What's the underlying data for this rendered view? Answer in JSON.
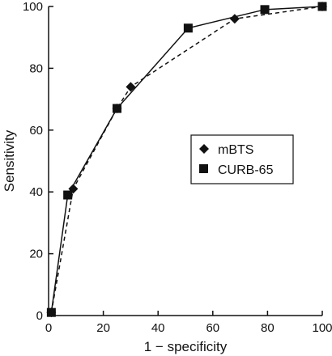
{
  "chart_data": {
    "type": "line",
    "xlabel": "1 − specificity",
    "ylabel": "Sensitivity",
    "xlim": [
      0,
      100
    ],
    "ylim": [
      0,
      100
    ],
    "x_ticks": [
      0,
      20,
      40,
      60,
      80,
      100
    ],
    "y_ticks": [
      0,
      20,
      40,
      60,
      80,
      100
    ],
    "grid": false,
    "legend_position": "center-right",
    "series": [
      {
        "name": "mBTS",
        "marker": "diamond",
        "line_style": "dashed",
        "color": "#111111",
        "x": [
          1,
          9,
          25,
          30,
          68,
          100
        ],
        "y": [
          1,
          41,
          67,
          74,
          96,
          100
        ]
      },
      {
        "name": "CURB-65",
        "marker": "square",
        "line_style": "solid",
        "color": "#111111",
        "x": [
          1,
          7,
          25,
          51,
          79,
          100
        ],
        "y": [
          1,
          39,
          67,
          93,
          99,
          100
        ]
      }
    ]
  }
}
